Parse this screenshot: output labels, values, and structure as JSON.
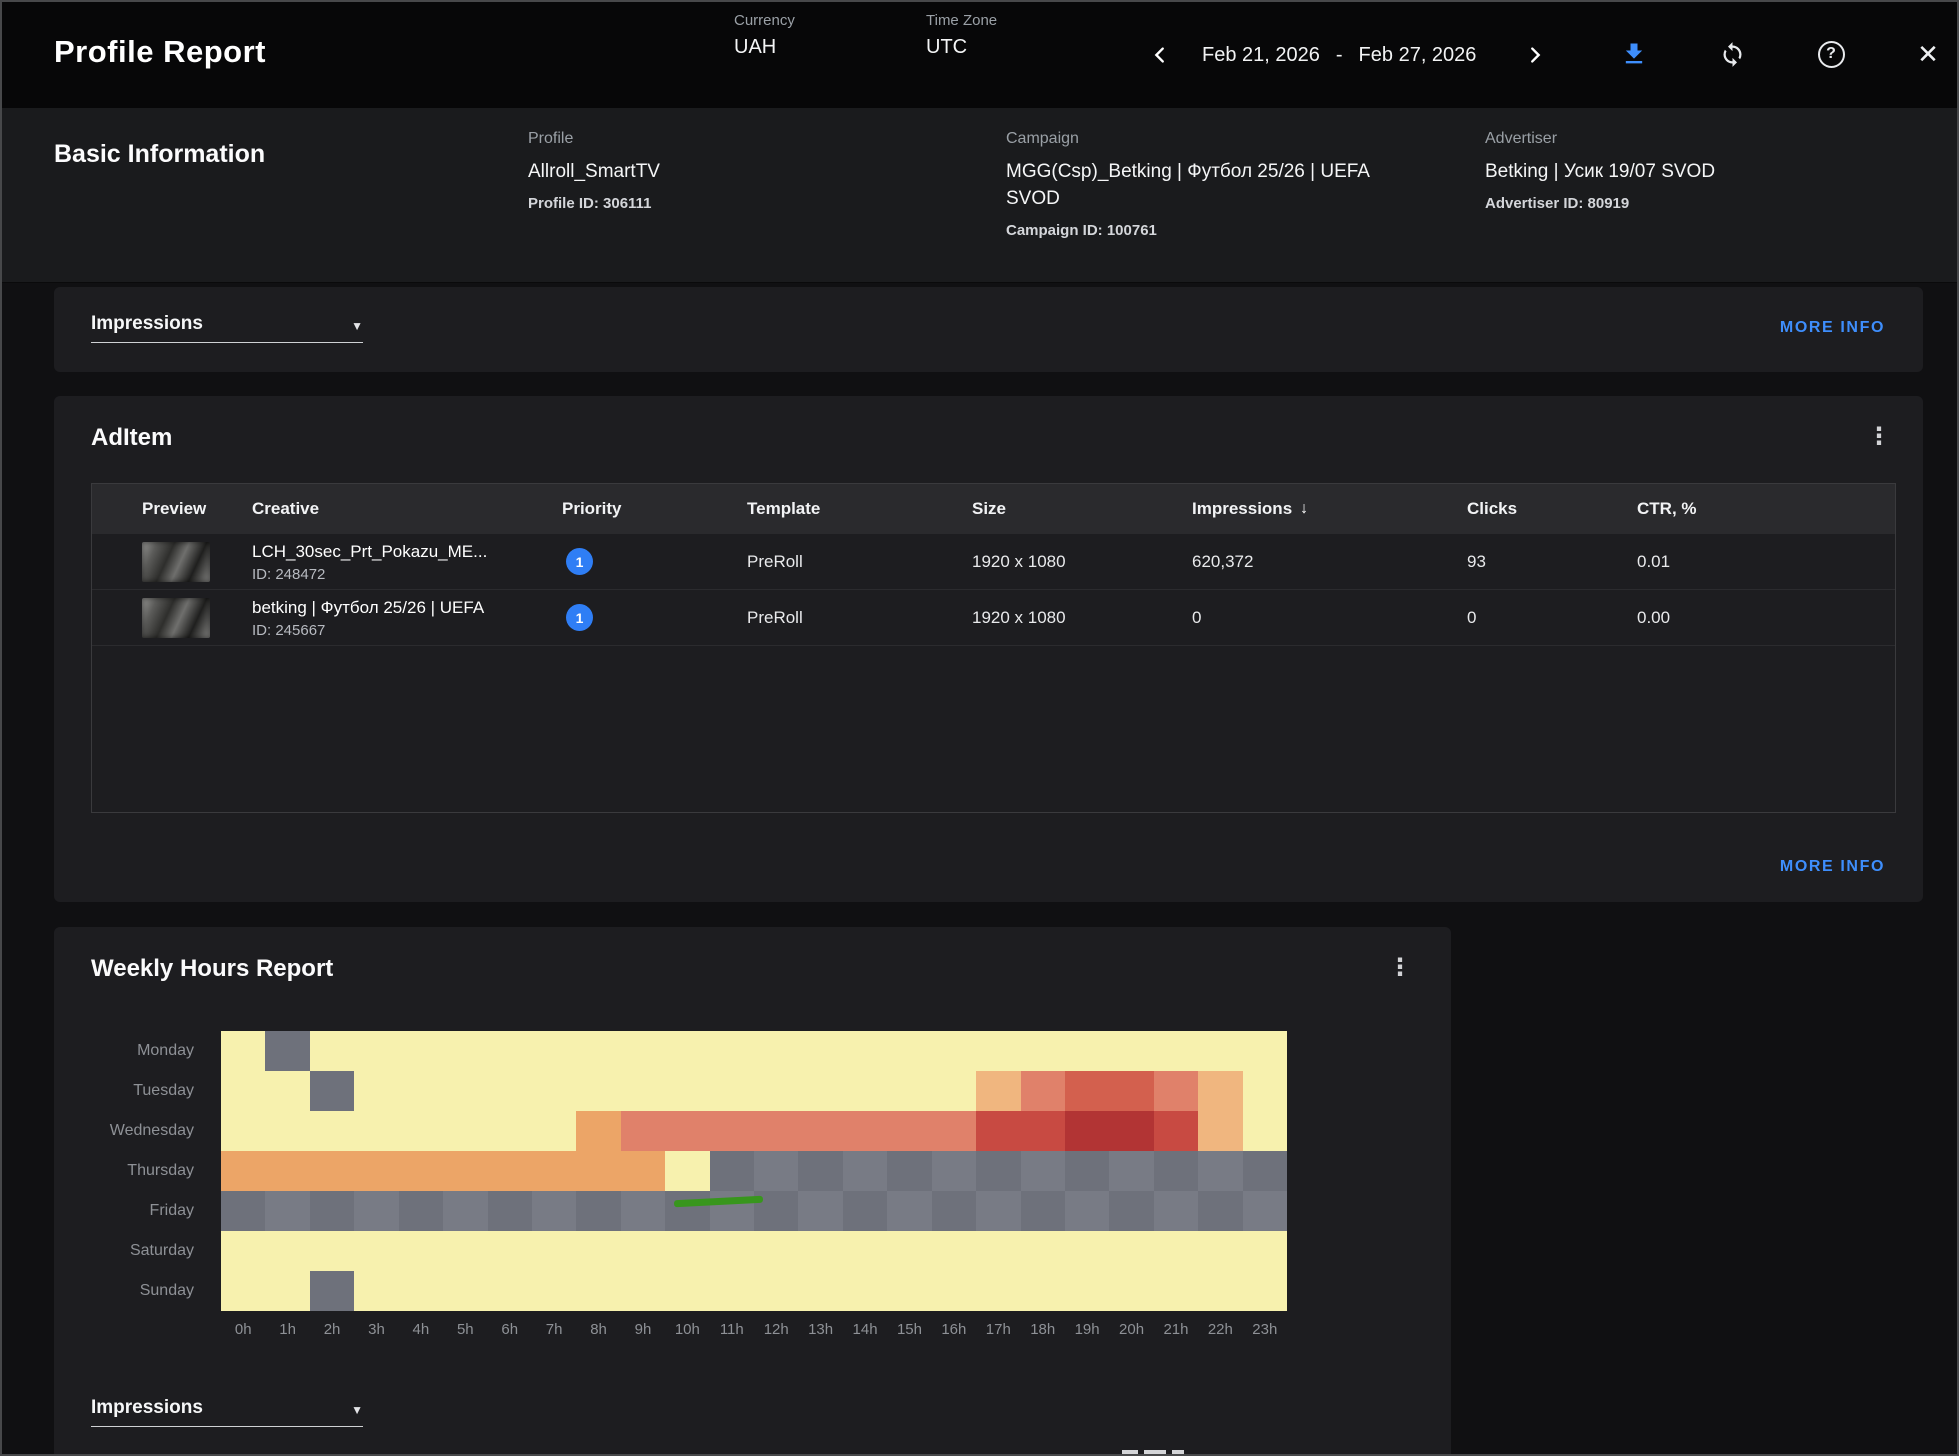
{
  "header": {
    "title": "Profile Report",
    "currency": {
      "label": "Currency",
      "value": "UAH"
    },
    "timezone": {
      "label": "Time Zone",
      "value": "UTC"
    },
    "date_range": {
      "from": "Feb 21, 2026",
      "separator": "-",
      "to": "Feb 27, 2026"
    }
  },
  "icons": {
    "kebab": "⋮",
    "caret": "▼",
    "sort_desc": "↓",
    "close": "✕",
    "help": "?"
  },
  "colors": {
    "accent_blue": "#3e8efc",
    "priority_badge": "#2f7ef5",
    "annotation_green": "#38961d"
  },
  "basic_info": {
    "title": "Basic Information",
    "fields": [
      {
        "label": "Profile",
        "value": "Allroll_SmartTV",
        "meta": "Profile ID: 306111"
      },
      {
        "label": "Campaign",
        "value": "MGG(Csp)_Betking | Футбол 25/26 | UEFA SVOD",
        "meta": "Campaign ID: 100761"
      },
      {
        "label": "Advertiser",
        "value": "Betking | Усик 19/07 SVOD",
        "meta": "Advertiser ID: 80919"
      }
    ]
  },
  "metric_card": {
    "dropdown_value": "Impressions",
    "more_info_label": "MORE INFO"
  },
  "aditem_card": {
    "title": "AdItem",
    "columns": [
      "Preview",
      "Creative",
      "Priority",
      "Template",
      "Size",
      "Impressions",
      "Clicks",
      "CTR, %"
    ],
    "sorted_column": "Impressions",
    "rows": [
      {
        "creative_name": "LCH_30sec_Prt_Pokazu_ME...",
        "creative_id": "ID: 248472",
        "priority": "1",
        "template": "PreRoll",
        "size": "1920 x 1080",
        "impressions": "620,372",
        "clicks": "93",
        "ctr": "0.01"
      },
      {
        "creative_name": "betking | Футбол 25/26 | UEFA",
        "creative_id": "ID: 245667",
        "priority": "1",
        "template": "PreRoll",
        "size": "1920 x 1080",
        "impressions": "0",
        "clicks": "0",
        "ctr": "0.00"
      }
    ],
    "more_info_label": "MORE INFO"
  },
  "weekly_card": {
    "title": "Weekly Hours Report",
    "dropdown_value": "Impressions"
  },
  "chart_data": {
    "type": "heatmap",
    "title": "Weekly Hours Report",
    "x_labels": [
      "0h",
      "1h",
      "2h",
      "3h",
      "4h",
      "5h",
      "6h",
      "7h",
      "8h",
      "9h",
      "10h",
      "11h",
      "12h",
      "13h",
      "14h",
      "15h",
      "16h",
      "17h",
      "18h",
      "19h",
      "20h",
      "21h",
      "22h",
      "23h"
    ],
    "y_labels": [
      "Monday",
      "Tuesday",
      "Wednesday",
      "Thursday",
      "Friday",
      "Saturday",
      "Sunday"
    ],
    "legend": "none shown; cell colors encode impression intensity buckets",
    "palette": {
      "Y": "#f7f1ae",
      "G": "#6e717b",
      "G2": "#787b85",
      "O": "#eca567",
      "O2": "#f0b67f",
      "S": "#e0816a",
      "S2": "#d3604e",
      "R": "#c84a42",
      "DR": "#b23434"
    },
    "rows": [
      [
        "Y",
        "G",
        "Y",
        "Y",
        "Y",
        "Y",
        "Y",
        "Y",
        "Y",
        "Y",
        "Y",
        "Y",
        "Y",
        "Y",
        "Y",
        "Y",
        "Y",
        "Y",
        "Y",
        "Y",
        "Y",
        "Y",
        "Y",
        "Y"
      ],
      [
        "Y",
        "Y",
        "G",
        "Y",
        "Y",
        "Y",
        "Y",
        "Y",
        "Y",
        "Y",
        "Y",
        "Y",
        "Y",
        "Y",
        "Y",
        "Y",
        "Y",
        "O2",
        "S",
        "S2",
        "S2",
        "S",
        "O2",
        "Y"
      ],
      [
        "Y",
        "Y",
        "Y",
        "Y",
        "Y",
        "Y",
        "Y",
        "Y",
        "O",
        "S",
        "S",
        "S",
        "S",
        "S",
        "S",
        "S",
        "S",
        "R",
        "R",
        "DR",
        "DR",
        "R",
        "O2",
        "Y"
      ],
      [
        "O",
        "O",
        "O",
        "O",
        "O",
        "O",
        "O",
        "O",
        "O",
        "O",
        "Y",
        "G",
        "G2",
        "G",
        "G2",
        "G",
        "G2",
        "G",
        "G2",
        "G",
        "G2",
        "G",
        "G2",
        "G"
      ],
      [
        "G",
        "G2",
        "G",
        "G2",
        "G",
        "G2",
        "G",
        "G2",
        "G",
        "G2",
        "G",
        "G2",
        "G",
        "G2",
        "G",
        "G2",
        "G",
        "G2",
        "G",
        "G2",
        "G",
        "G2",
        "G",
        "G2"
      ],
      [
        "Y",
        "Y",
        "Y",
        "Y",
        "Y",
        "Y",
        "Y",
        "Y",
        "Y",
        "Y",
        "Y",
        "Y",
        "Y",
        "Y",
        "Y",
        "Y",
        "Y",
        "Y",
        "Y",
        "Y",
        "Y",
        "Y",
        "Y",
        "Y"
      ],
      [
        "Y",
        "Y",
        "G",
        "Y",
        "Y",
        "Y",
        "Y",
        "Y",
        "Y",
        "Y",
        "Y",
        "Y",
        "Y",
        "Y",
        "Y",
        "Y",
        "Y",
        "Y",
        "Y",
        "Y",
        "Y",
        "Y",
        "Y",
        "Y"
      ]
    ],
    "annotation": {
      "type": "line",
      "color": "#38961d",
      "row_index": 4,
      "x_start_hour": 10.2,
      "x_end_hour": 12.2
    }
  }
}
